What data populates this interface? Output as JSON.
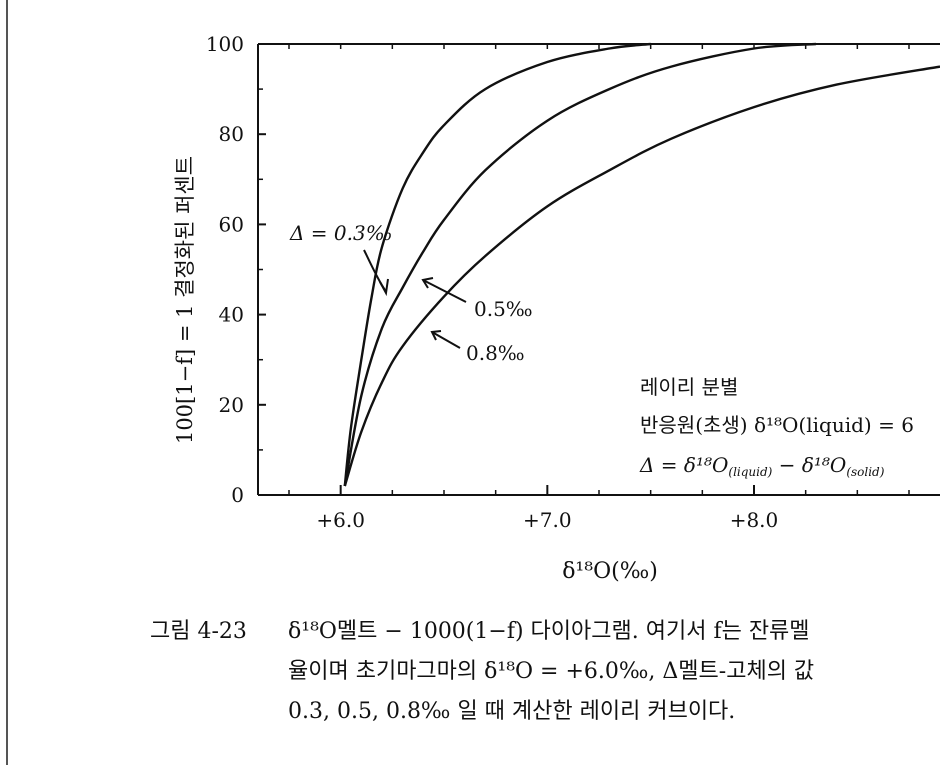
{
  "chart_data": {
    "type": "line",
    "ylabel": "100[1−f] = 1  결정화된 퍼센트",
    "xlabel": "δ¹⁸O(‰)",
    "x_tick_labels": [
      "+6.0",
      "+7.0",
      "+8.0"
    ],
    "x_ticks": [
      6.0,
      7.0,
      8.0
    ],
    "y_tick_labels": [
      "0",
      "20",
      "40",
      "60",
      "80",
      "100"
    ],
    "y_ticks": [
      0,
      20,
      40,
      60,
      80,
      100
    ],
    "xlim": [
      5.6,
      8.9
    ],
    "ylim": [
      0,
      100
    ],
    "series": [
      {
        "name": "Δ = 0.3‰",
        "x": [
          6.02,
          6.05,
          6.1,
          6.15,
          6.2,
          6.3,
          6.4,
          6.5,
          6.7,
          7.0,
          7.3,
          7.5
        ],
        "y": [
          2,
          15,
          30,
          44,
          55,
          68,
          76,
          82,
          90,
          96,
          99,
          100
        ]
      },
      {
        "name": "0.5‰",
        "x": [
          6.02,
          6.1,
          6.2,
          6.3,
          6.4,
          6.5,
          6.7,
          7.0,
          7.3,
          7.6,
          8.0,
          8.3
        ],
        "y": [
          2,
          22,
          37,
          46,
          54,
          61,
          72,
          83,
          90,
          95,
          99,
          100
        ]
      },
      {
        "name": "0.8‰",
        "x": [
          6.02,
          6.1,
          6.2,
          6.3,
          6.5,
          6.7,
          7.0,
          7.3,
          7.6,
          8.0,
          8.4,
          8.9
        ],
        "y": [
          2,
          14,
          25,
          33,
          44,
          53,
          64,
          72,
          79,
          86,
          91,
          95
        ]
      }
    ],
    "annotations": {
      "delta_03": "Δ = 0.3‰",
      "delta_05": "0.5‰",
      "delta_08": "0.8‰",
      "legend_title": "레이리 분별",
      "legend_line2": "반응원(초생)  δ¹⁸O(liquid) = 6",
      "legend_line3_a": "Δ = δ¹⁸O",
      "legend_line3_b": "(liquid)",
      "legend_line3_c": " − δ¹⁸O",
      "legend_line3_d": "(solid)"
    },
    "grid": false
  },
  "caption": {
    "label": "그림 4-23",
    "line1": "δ¹⁸O멜트 − 1000(1−f)  다이아그램.  여기서  f는  잔류멜",
    "line2": "율이며  초기마그마의  δ¹⁸O = +6.0‰,  Δ멜트-고체의  값",
    "line3": "0.3,  0.5,  0.8‰ 일  때  계산한  레이리  커브이다."
  }
}
